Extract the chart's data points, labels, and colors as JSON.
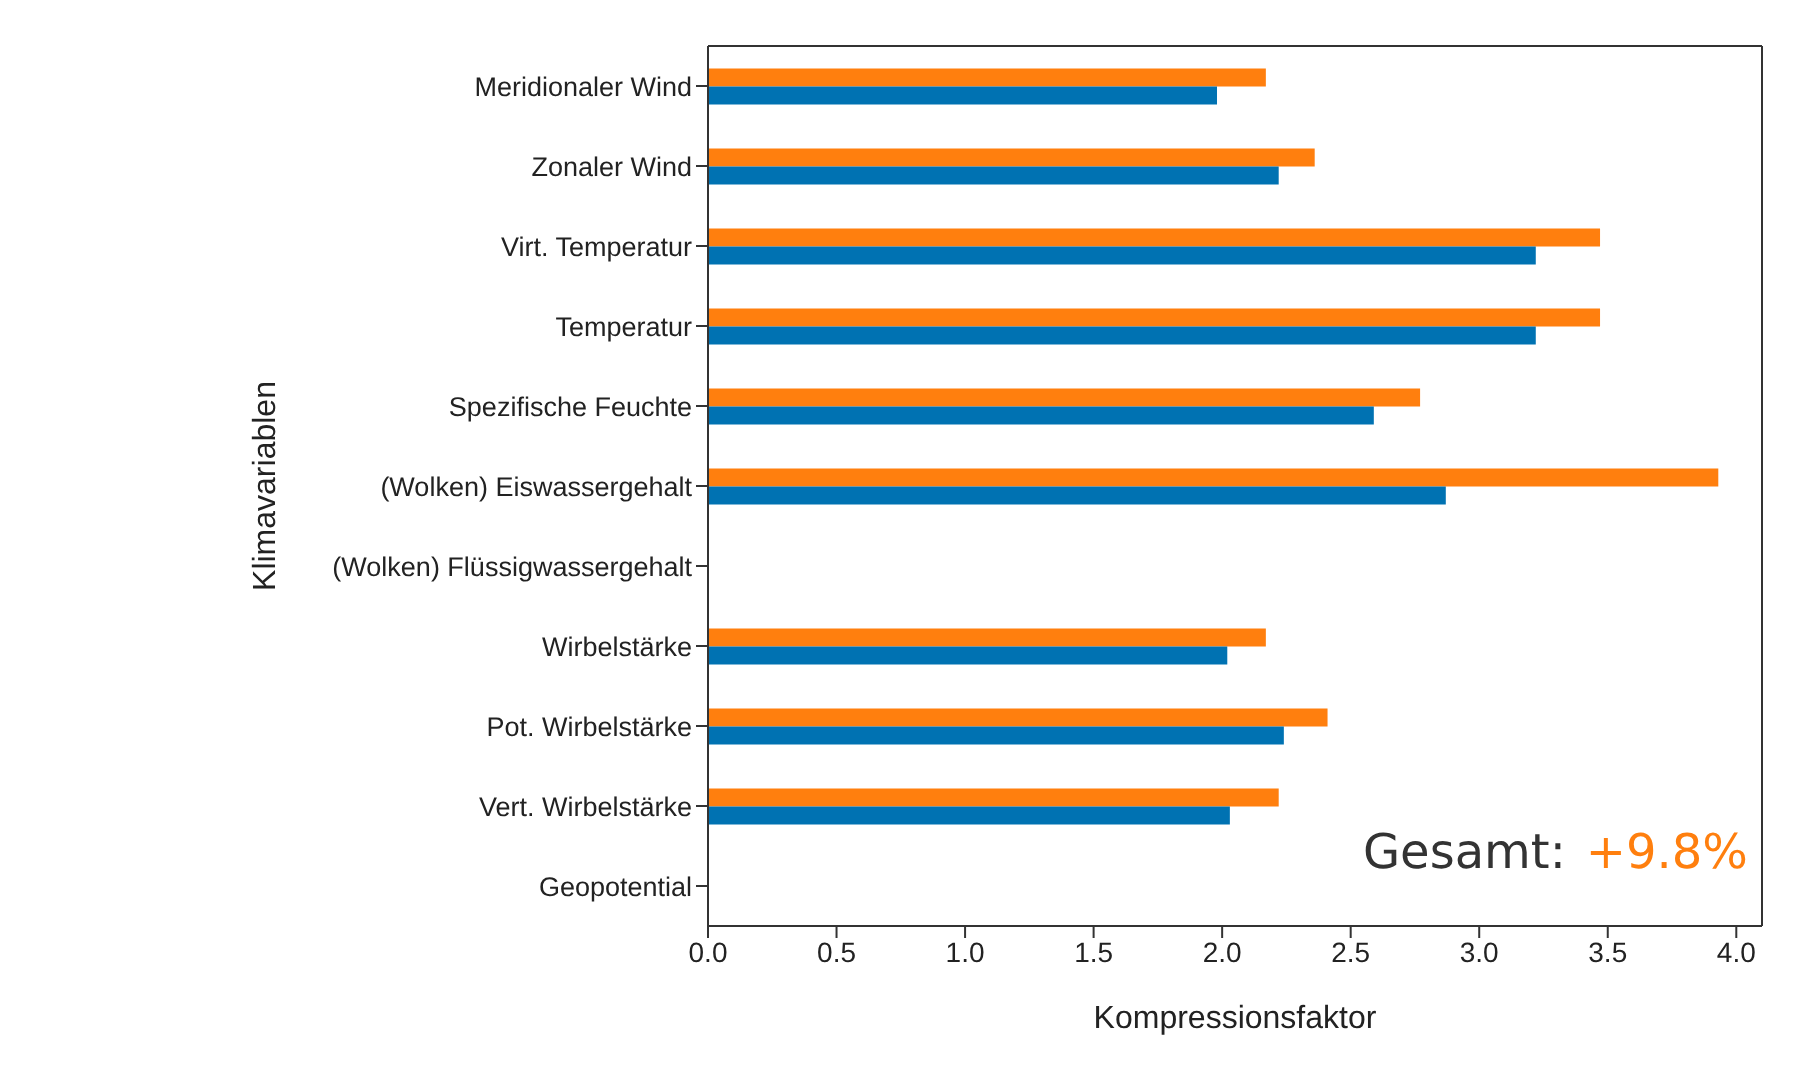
{
  "chart_data": {
    "type": "bar",
    "orientation": "horizontal",
    "xlabel": "Kompressionsfaktor",
    "ylabel": "Klimavariablen",
    "categories": [
      "Meridionaler Wind",
      "Zonaler Wind",
      "Virt. Temperatur",
      "Temperatur",
      "Spezifische Feuchte",
      "(Wolken) Eiswassergehalt",
      "(Wolken) Flüssigwassergehalt",
      "Wirbelstärke",
      "Pot. Wirbelstärke",
      "Vert. Wirbelstärke",
      "Geopotential"
    ],
    "series": [
      {
        "color": "#0072b2",
        "values": [
          1.98,
          2.22,
          3.22,
          3.22,
          2.59,
          2.87,
          null,
          2.02,
          2.24,
          2.03,
          null
        ]
      },
      {
        "color": "#ff7f0e",
        "values": [
          2.17,
          2.36,
          3.47,
          3.47,
          2.77,
          3.93,
          null,
          2.17,
          2.41,
          2.22,
          null
        ]
      }
    ],
    "xlim": [
      0,
      4.1
    ],
    "xticks": [
      {
        "value": 0,
        "label": "0.0"
      },
      {
        "value": 0.5,
        "label": "0.5"
      },
      {
        "value": 1,
        "label": "1.0"
      },
      {
        "value": 1.5,
        "label": "1.5"
      },
      {
        "value": 2,
        "label": "2.0"
      },
      {
        "value": 2.5,
        "label": "2.5"
      },
      {
        "value": 3,
        "label": "3.0"
      },
      {
        "value": 3.5,
        "label": "3.5"
      },
      {
        "value": 4,
        "label": "4.0"
      }
    ],
    "annotations": [
      "Gesamt:",
      "+9.8%"
    ]
  }
}
